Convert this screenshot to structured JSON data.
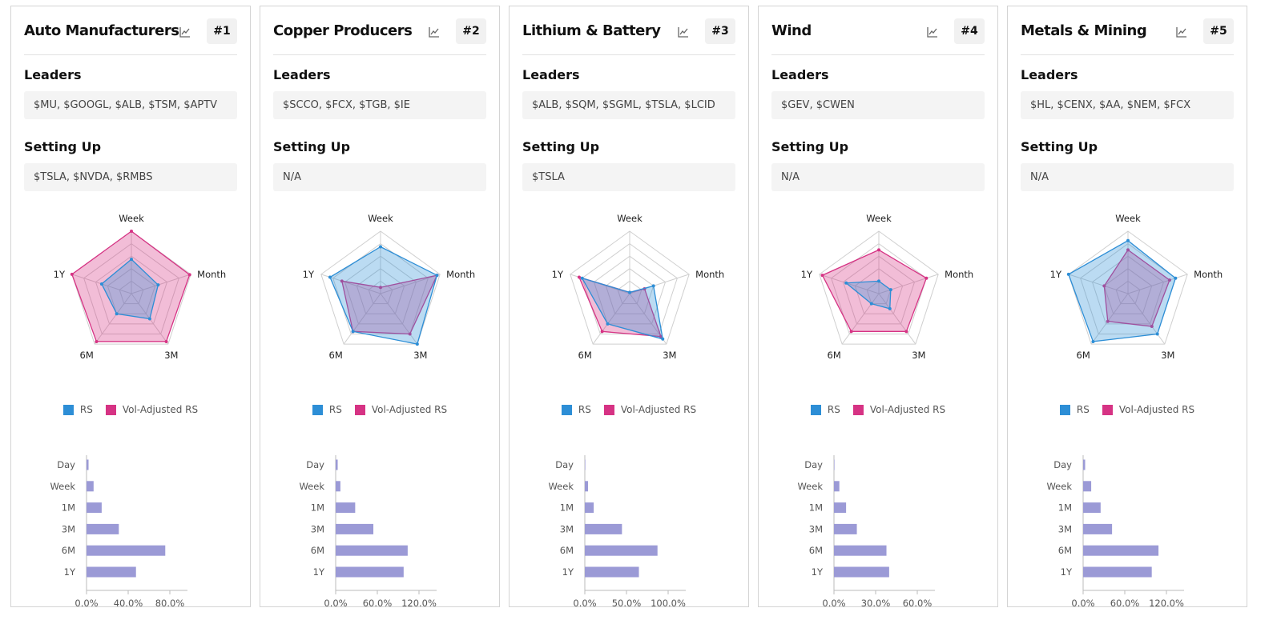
{
  "legend": {
    "rs_label": "RS",
    "vol_label": "Vol-Adjusted RS",
    "rs_color": "#2d8ed6",
    "vol_color": "#d63384"
  },
  "section_labels": {
    "leaders": "Leaders",
    "setting_up": "Setting Up"
  },
  "cards": [
    {
      "title": "Auto Manufacturers",
      "rank": "#1",
      "leaders": "$MU, $GOOGL, $ALB, $TSM, $APTV",
      "setting_up": "$TSLA, $NVDA, $RMBS",
      "radar": {
        "axes": [
          "Week",
          "Month",
          "3M",
          "6M",
          "1Y"
        ],
        "rs": [
          0.55,
          0.45,
          0.5,
          0.4,
          0.5
        ],
        "vol": [
          1.0,
          0.98,
          0.95,
          0.95,
          1.0
        ]
      },
      "bars": {
        "categories": [
          "Day",
          "Week",
          "1M",
          "3M",
          "6M",
          "1Y"
        ],
        "values": [
          2,
          7,
          15,
          32,
          78,
          49
        ],
        "ticks": [
          "0.0%",
          "40.0%",
          "80.0%"
        ],
        "xmax": 100
      }
    },
    {
      "title": "Copper Producers",
      "rank": "#2",
      "leaders": "$SCCO, $FCX, $TGB, $IE",
      "setting_up": "N/A",
      "radar": {
        "axes": [
          "Week",
          "Month",
          "3M",
          "6M",
          "1Y"
        ],
        "rs": [
          0.75,
          0.95,
          1.0,
          0.75,
          0.85
        ],
        "vol": [
          0.1,
          0.95,
          0.8,
          0.75,
          0.65
        ]
      },
      "bars": {
        "categories": [
          "Day",
          "Week",
          "1M",
          "3M",
          "6M",
          "1Y"
        ],
        "values": [
          3,
          7,
          29,
          56,
          107,
          101
        ],
        "ticks": [
          "0.0%",
          "60.0%",
          "120.0%"
        ],
        "xmax": 150
      }
    },
    {
      "title": "Lithium & Battery",
      "rank": "#3",
      "leaders": "$ALB, $SQM, $SGML, $TSLA, $LCID",
      "setting_up": "$TSLA",
      "radar": {
        "axes": [
          "Week",
          "Month",
          "3M",
          "6M",
          "1Y"
        ],
        "rs": [
          0.02,
          0.4,
          0.9,
          0.6,
          0.8
        ],
        "vol": [
          0.02,
          0.25,
          0.85,
          0.75,
          0.85
        ]
      },
      "bars": {
        "categories": [
          "Day",
          "Week",
          "1M",
          "3M",
          "6M",
          "1Y"
        ],
        "values": [
          0.5,
          4,
          11,
          46,
          90,
          67
        ],
        "ticks": [
          "0.0%",
          "50.0%",
          "100.0%"
        ],
        "xmax": 125
      }
    },
    {
      "title": "Wind",
      "rank": "#4",
      "leaders": "$GEV, $CWEN",
      "setting_up": "N/A",
      "radar": {
        "axes": [
          "Week",
          "Month",
          "3M",
          "6M",
          "1Y"
        ],
        "rs": [
          0.2,
          0.2,
          0.3,
          0.2,
          0.55
        ],
        "vol": [
          0.7,
          0.8,
          0.75,
          0.75,
          0.95
        ]
      },
      "bars": {
        "categories": [
          "Day",
          "Week",
          "1M",
          "3M",
          "6M",
          "1Y"
        ],
        "values": [
          0.3,
          4,
          9,
          17,
          39,
          41
        ],
        "ticks": [
          "0.0%",
          "30.0%",
          "60.0%"
        ],
        "xmax": 75
      }
    },
    {
      "title": "Metals & Mining",
      "rank": "#5",
      "leaders": "$HL, $CENX, $AA, $NEM, $FCX",
      "setting_up": "N/A",
      "radar": {
        "axes": [
          "Week",
          "Month",
          "3M",
          "6M",
          "1Y"
        ],
        "rs": [
          0.85,
          0.8,
          0.8,
          0.95,
          1.0
        ],
        "vol": [
          0.7,
          0.7,
          0.65,
          0.55,
          0.4
        ]
      },
      "bars": {
        "categories": [
          "Day",
          "Week",
          "1M",
          "3M",
          "6M",
          "1Y"
        ],
        "values": [
          3,
          12,
          26,
          43,
          112,
          102
        ],
        "ticks": [
          "0.0%",
          "60.0%",
          "120.0%"
        ],
        "xmax": 150
      }
    }
  ]
}
